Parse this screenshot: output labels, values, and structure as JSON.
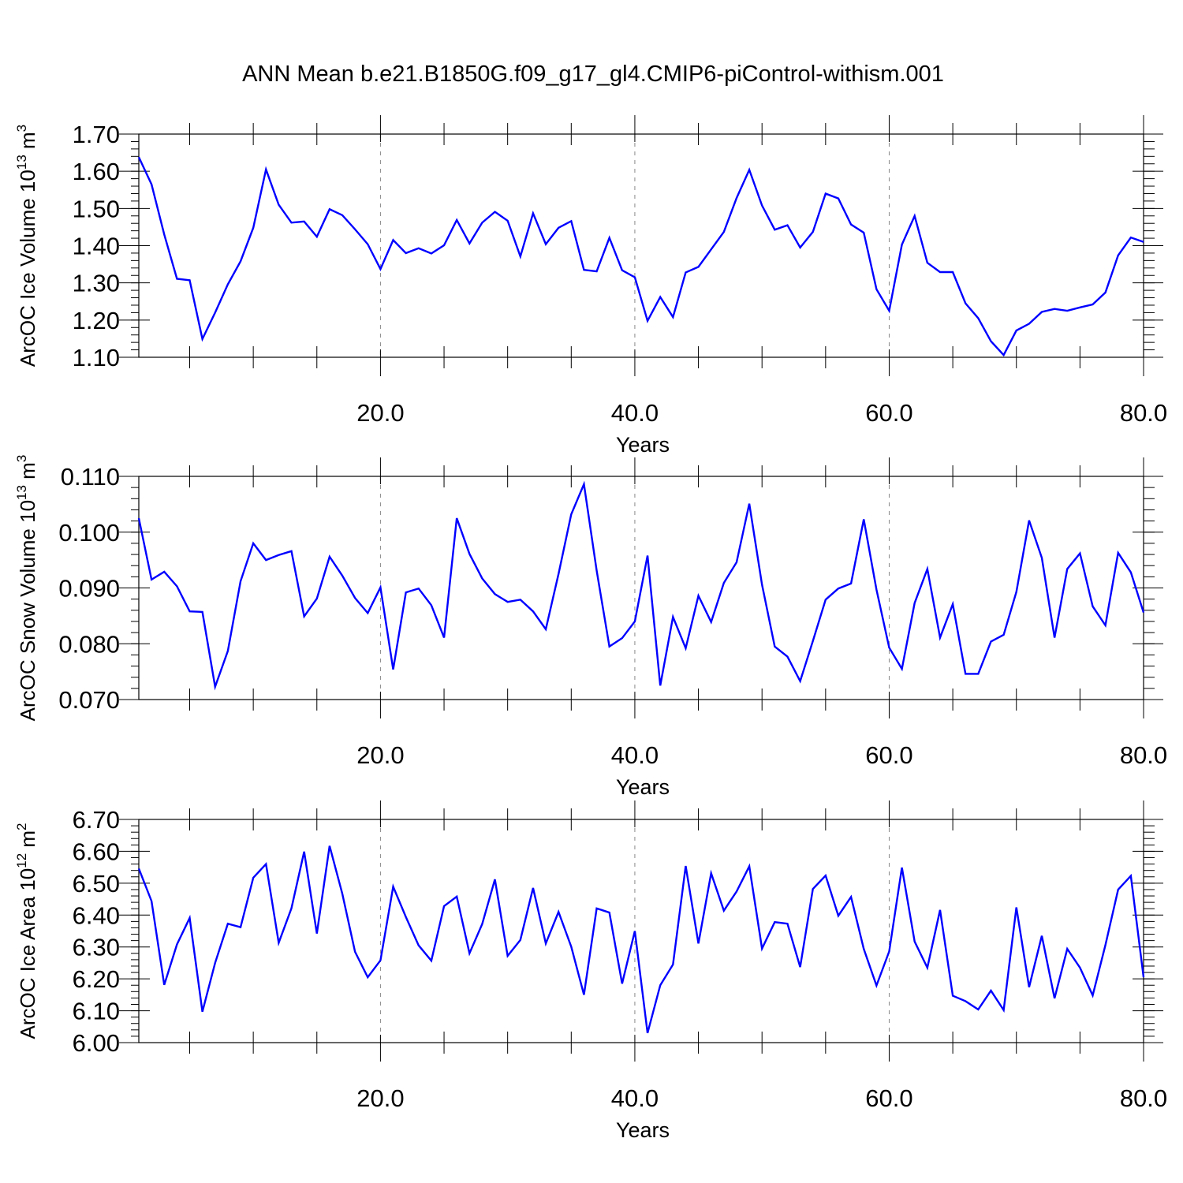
{
  "title": "ANN Mean b.e21.B1850G.f09_g17_gl4.CMIP6-piControl-withism.001",
  "colors": {
    "line": "#0000ff",
    "axis": "#000000",
    "grid": "#888888"
  },
  "chart_data": [
    {
      "type": "line",
      "ylabel_text": "ArcOC Ice Volume 10",
      "ylabel_exp": "13",
      "ylabel_unit": "m",
      "ylabel_unit_exp": "3",
      "xlabel": "Years",
      "xlim": [
        1,
        80
      ],
      "ylim": [
        1.1,
        1.7
      ],
      "xticks": [
        "20.0",
        "40.0",
        "60.0",
        "80.0"
      ],
      "xtick_values": [
        20,
        40,
        60,
        80
      ],
      "yticks": [
        "1.10",
        "1.20",
        "1.30",
        "1.40",
        "1.50",
        "1.60",
        "1.70"
      ],
      "ytick_values": [
        1.1,
        1.2,
        1.3,
        1.4,
        1.5,
        1.6,
        1.7
      ],
      "grid": "vertical dashed at major x ticks",
      "values": [
        1.638,
        1.565,
        1.43,
        1.311,
        1.307,
        1.149,
        1.22,
        1.296,
        1.358,
        1.448,
        1.605,
        1.51,
        1.462,
        1.465,
        1.424,
        1.498,
        1.482,
        1.444,
        1.404,
        1.337,
        1.415,
        1.38,
        1.393,
        1.379,
        1.401,
        1.469,
        1.406,
        1.462,
        1.491,
        1.467,
        1.371,
        1.487,
        1.404,
        1.448,
        1.466,
        1.335,
        1.331,
        1.421,
        1.334,
        1.315,
        1.198,
        1.262,
        1.208,
        1.328,
        1.343,
        1.39,
        1.437,
        1.528,
        1.604,
        1.508,
        1.443,
        1.455,
        1.395,
        1.437,
        1.54,
        1.527,
        1.457,
        1.435,
        1.283,
        1.225,
        1.403,
        1.48,
        1.354,
        1.329,
        1.329,
        1.245,
        1.205,
        1.143,
        1.106,
        1.172,
        1.19,
        1.222,
        1.23,
        1.225,
        1.234,
        1.242,
        1.274,
        1.374,
        1.422,
        1.41
      ]
    },
    {
      "type": "line",
      "ylabel_text": "ArcOC Snow Volume 10",
      "ylabel_exp": "13",
      "ylabel_unit": "m",
      "ylabel_unit_exp": "3",
      "xlabel": "Years",
      "xlim": [
        1,
        80
      ],
      "ylim": [
        0.07,
        0.11
      ],
      "xticks": [
        "20.0",
        "40.0",
        "60.0",
        "80.0"
      ],
      "xtick_values": [
        20,
        40,
        60,
        80
      ],
      "yticks": [
        "0.070",
        "0.080",
        "0.090",
        "0.100",
        "0.110"
      ],
      "ytick_values": [
        0.07,
        0.08,
        0.09,
        0.1,
        0.11
      ],
      "grid": "vertical dashed at major x ticks",
      "values": [
        0.1025,
        0.0915,
        0.0929,
        0.0903,
        0.0858,
        0.0857,
        0.0723,
        0.0787,
        0.0912,
        0.098,
        0.095,
        0.0959,
        0.0966,
        0.0849,
        0.0881,
        0.0956,
        0.0922,
        0.0882,
        0.0855,
        0.0901,
        0.0754,
        0.0892,
        0.0899,
        0.0869,
        0.0811,
        0.1025,
        0.0961,
        0.0917,
        0.0889,
        0.0875,
        0.0879,
        0.0858,
        0.0826,
        0.0925,
        0.1032,
        0.1086,
        0.0931,
        0.0795,
        0.081,
        0.084,
        0.0958,
        0.0725,
        0.0848,
        0.0792,
        0.0886,
        0.0839,
        0.0909,
        0.0946,
        0.1051,
        0.0906,
        0.0795,
        0.0777,
        0.0733,
        0.0805,
        0.0879,
        0.0899,
        0.0908,
        0.1023,
        0.0897,
        0.0793,
        0.0755,
        0.0873,
        0.0934,
        0.0811,
        0.0871,
        0.0746,
        0.0746,
        0.0804,
        0.0816,
        0.0893,
        0.1021,
        0.0954,
        0.0811,
        0.0934,
        0.0962,
        0.0867,
        0.0833,
        0.0963,
        0.0928,
        0.0856
      ]
    },
    {
      "type": "line",
      "ylabel_text": "ArcOC Ice Area 10",
      "ylabel_exp": "12",
      "ylabel_unit": "m",
      "ylabel_unit_exp": "2",
      "xlabel": "Years",
      "xlim": [
        1,
        80
      ],
      "ylim": [
        6.0,
        6.7
      ],
      "xticks": [
        "20.0",
        "40.0",
        "60.0",
        "80.0"
      ],
      "xtick_values": [
        20,
        40,
        60,
        80
      ],
      "yticks": [
        "6.00",
        "6.10",
        "6.20",
        "6.30",
        "6.40",
        "6.50",
        "6.60",
        "6.70"
      ],
      "ytick_values": [
        6.0,
        6.1,
        6.2,
        6.3,
        6.4,
        6.5,
        6.6,
        6.7
      ],
      "grid": "vertical dashed at major x ticks",
      "values": [
        6.546,
        6.444,
        6.181,
        6.308,
        6.391,
        6.097,
        6.25,
        6.373,
        6.362,
        6.517,
        6.56,
        6.313,
        6.421,
        6.599,
        6.342,
        6.617,
        6.467,
        6.285,
        6.205,
        6.258,
        6.489,
        6.394,
        6.305,
        6.257,
        6.428,
        6.458,
        6.28,
        6.372,
        6.512,
        6.272,
        6.322,
        6.485,
        6.311,
        6.41,
        6.301,
        6.15,
        6.421,
        6.408,
        6.185,
        6.35,
        6.03,
        6.18,
        6.245,
        6.554,
        6.311,
        6.531,
        6.414,
        6.474,
        6.553,
        6.295,
        6.378,
        6.373,
        6.237,
        6.482,
        6.524,
        6.398,
        6.457,
        6.294,
        6.179,
        6.286,
        6.549,
        6.317,
        6.235,
        6.416,
        6.147,
        6.13,
        6.104,
        6.163,
        6.102,
        6.424,
        6.174,
        6.335,
        6.139,
        6.294,
        6.235,
        6.148,
        6.306,
        6.48,
        6.523,
        6.205
      ]
    }
  ]
}
